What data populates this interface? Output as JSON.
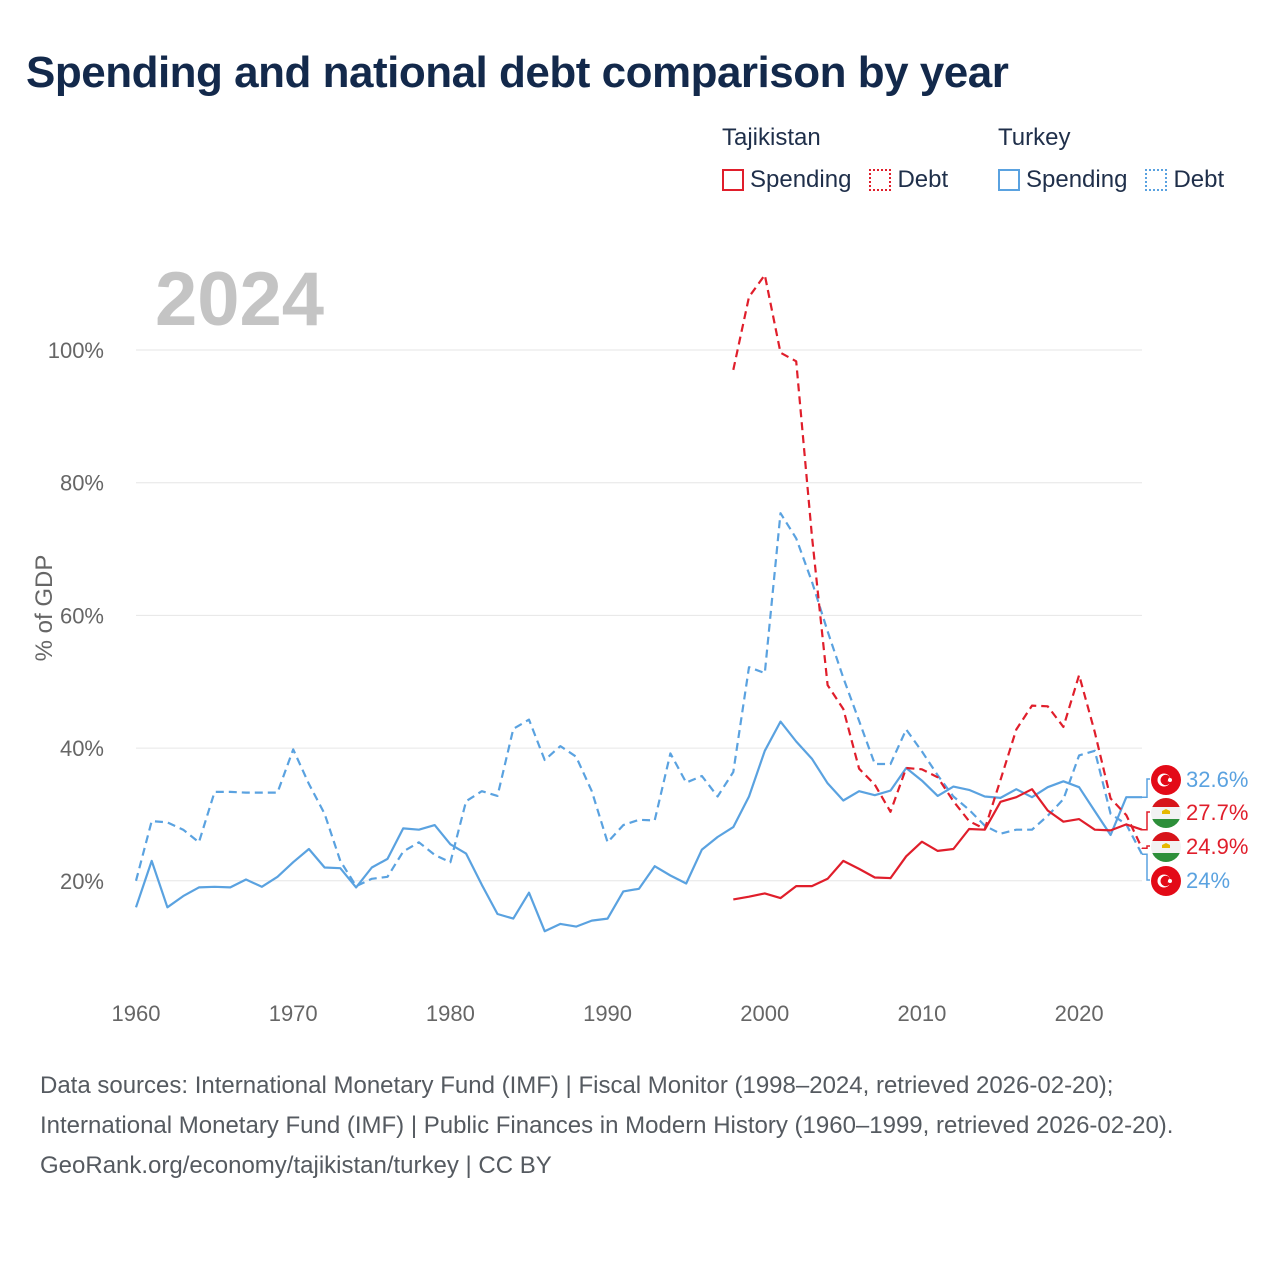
{
  "title": "Spending and national debt comparison by year",
  "legend": {
    "groups": [
      {
        "country": "Tajikistan",
        "color": "#e01e2b",
        "items": [
          {
            "label": "Spending",
            "style": "solid"
          },
          {
            "label": "Debt",
            "style": "dotted"
          }
        ]
      },
      {
        "country": "Turkey",
        "color": "#5aa2e0",
        "items": [
          {
            "label": "Spending",
            "style": "solid"
          },
          {
            "label": "Debt",
            "style": "dotted"
          }
        ]
      }
    ]
  },
  "year_label": "2024",
  "footer": {
    "sources": "Data sources: International Monetary Fund (IMF) | Fiscal Monitor (1998–2024, retrieved 2026-02-20); International Monetary Fund (IMF) | Public Finances in Modern History (1960–1999, retrieved 2026-02-20).",
    "credit": "GeoRank.org/economy/tajikistan/turkey | CC BY"
  },
  "end_labels": [
    {
      "text": "32.6%",
      "value": 32.6,
      "series": "Turkey Spending",
      "flag": "turkey",
      "color": "#5aa2e0"
    },
    {
      "text": "27.7%",
      "value": 27.7,
      "series": "Tajikistan Spending",
      "flag": "tajikistan",
      "color": "#e01e2b"
    },
    {
      "text": "24.9%",
      "value": 24.9,
      "series": "Tajikistan Debt",
      "flag": "tajikistan",
      "color": "#e01e2b"
    },
    {
      "text": "24%",
      "value": 24,
      "series": "Turkey Debt",
      "flag": "turkey",
      "color": "#5aa2e0"
    }
  ],
  "chart_data": {
    "type": "line",
    "title": "Spending and national debt comparison by year",
    "xlabel": "",
    "ylabel": "% of GDP",
    "xlim": [
      1960,
      2024
    ],
    "ylim": [
      0,
      115
    ],
    "x_ticks": [
      1960,
      1970,
      1980,
      1990,
      2000,
      2010,
      2020
    ],
    "y_ticks": [
      20,
      40,
      60,
      80,
      100
    ],
    "y_tick_labels": [
      "20%",
      "40%",
      "60%",
      "80%",
      "100%"
    ],
    "grid": true,
    "series": [
      {
        "name": "Turkey Debt",
        "country": "Turkey",
        "measure": "Debt",
        "color": "#5aa2e0",
        "dashed": true,
        "start_year": 1960,
        "values": [
          20,
          29,
          28.8,
          27.7,
          25.8,
          33.4,
          33.4,
          33.3,
          33.3,
          33.3,
          39.8,
          34.6,
          30.1,
          23,
          19.2,
          20.3,
          20.6,
          24.4,
          25.8,
          23.9,
          22.8,
          32,
          33.5,
          32.8,
          42.9,
          44.3,
          38.2,
          40.3,
          38.7,
          33.5,
          25.8,
          28.4,
          29.2,
          29.1,
          39.2,
          34.8,
          35.8,
          32.7,
          36.4,
          52.2,
          51.3,
          75.4,
          71.6,
          65.1,
          57.6,
          50.6,
          44.1,
          37.6,
          37.6,
          42.8,
          39.5,
          35.9,
          32.7,
          30.7,
          28.3,
          27.1,
          27.7,
          27.7,
          29.8,
          32.3,
          38.9,
          39.6,
          30.1,
          28.5,
          24
        ]
      },
      {
        "name": "Turkey Spending",
        "country": "Turkey",
        "measure": "Spending",
        "color": "#5aa2e0",
        "dashed": false,
        "start_year": 1960,
        "values": [
          16,
          23,
          16,
          17.7,
          19,
          19.1,
          19,
          20.2,
          19.1,
          20.6,
          22.8,
          24.8,
          22,
          21.9,
          19,
          22,
          23.3,
          27.9,
          27.7,
          28.4,
          25.5,
          24.1,
          19.4,
          15,
          14.3,
          18.2,
          12.4,
          13.5,
          13.1,
          14,
          14.3,
          18.4,
          18.8,
          22.2,
          20.8,
          19.6,
          24.7,
          26.6,
          28.1,
          32.7,
          39.6,
          44,
          41,
          38.4,
          34.7,
          32.1,
          33.5,
          32.9,
          33.6,
          37,
          35.1,
          32.8,
          34.2,
          33.7,
          32.7,
          32.5,
          33.8,
          32.6,
          34.1,
          35,
          34.1,
          30.5,
          26.9,
          32.6,
          32.6
        ]
      },
      {
        "name": "Tajikistan Debt",
        "country": "Tajikistan",
        "measure": "Debt",
        "color": "#e01e2b",
        "dashed": true,
        "start_year": 1998,
        "values": [
          97,
          108,
          111.3,
          99.6,
          98.3,
          72,
          49.5,
          45.9,
          36.9,
          34.5,
          30.4,
          37,
          36.8,
          35.6,
          32,
          29,
          27.8,
          35.2,
          42.8,
          46.4,
          46.3,
          43.2,
          51,
          42.4,
          32.4,
          29.9,
          24.9
        ]
      },
      {
        "name": "Tajikistan Spending",
        "country": "Tajikistan",
        "measure": "Spending",
        "color": "#e01e2b",
        "dashed": false,
        "start_year": 1998,
        "values": [
          17.2,
          17.6,
          18.1,
          17.4,
          19.2,
          19.2,
          20.3,
          23,
          21.8,
          20.5,
          20.4,
          23.7,
          25.9,
          24.5,
          24.8,
          27.8,
          27.7,
          31.9,
          32.6,
          33.8,
          30.6,
          28.9,
          29.3,
          27.7,
          27.6,
          28.5,
          27.7
        ]
      }
    ]
  }
}
